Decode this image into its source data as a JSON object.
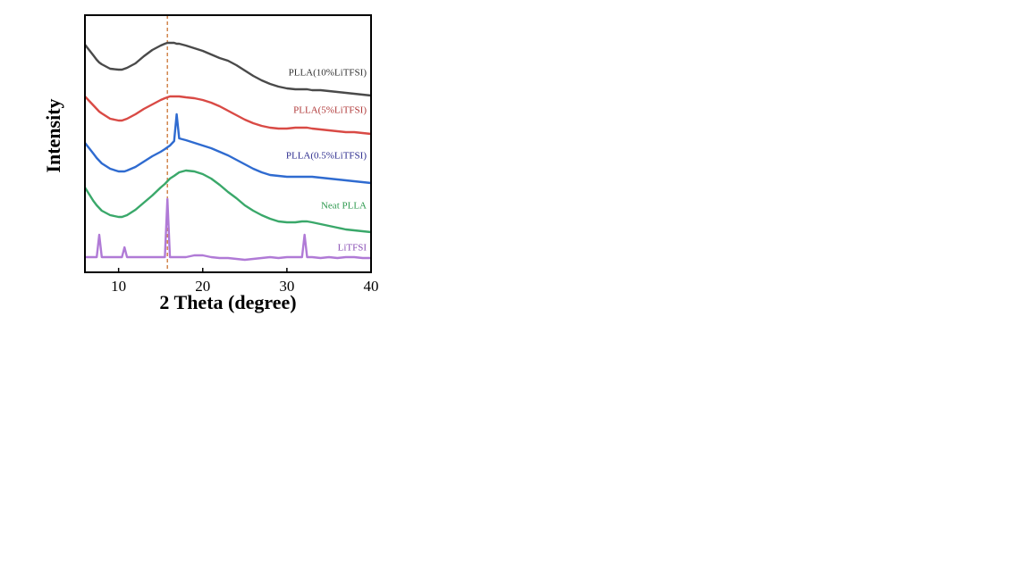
{
  "chart_data": {
    "type": "line",
    "x_label": "2 Theta (degree)",
    "y_label": "Intensity",
    "xlim": [
      6,
      40
    ],
    "ylim": [
      0,
      288
    ],
    "xticks": [
      10,
      20,
      30,
      40
    ],
    "vline": {
      "x": 15.8,
      "color": "#d2874e"
    },
    "x": [
      6,
      7,
      7.4,
      7.7,
      8,
      9,
      10,
      10.4,
      10.7,
      11,
      12,
      13,
      14,
      15,
      15.5,
      15.8,
      16.1,
      16.6,
      16.9,
      17.2,
      18,
      19,
      20,
      21,
      22,
      23,
      24,
      25,
      26,
      27,
      28,
      29,
      30,
      31,
      31.8,
      32.1,
      32.4,
      33,
      34,
      35,
      36,
      37,
      38,
      39,
      40
    ],
    "series": [
      {
        "name": "PLLA(10%LiTFSI)",
        "color": "#4a4a4a",
        "label_color": "#333333",
        "values": [
          255,
          243,
          238,
          235,
          233,
          228,
          227,
          227,
          228,
          229,
          234,
          242,
          249,
          254,
          256,
          257,
          257,
          257,
          256,
          256,
          254,
          251,
          248,
          244,
          240,
          237,
          232,
          226,
          220,
          215,
          211,
          208,
          206,
          205,
          205,
          205,
          205,
          204,
          204,
          203,
          202,
          201,
          200,
          199,
          198
        ]
      },
      {
        "name": "PLLA(5%LiTFSI)",
        "color": "#d94a45",
        "label_color": "#b03a3a",
        "values": [
          197,
          187,
          183,
          180,
          178,
          172,
          170,
          170,
          171,
          172,
          177,
          183,
          188,
          193,
          195,
          196,
          197,
          197,
          197,
          197,
          196,
          195,
          193,
          190,
          186,
          181,
          176,
          171,
          167,
          164,
          162,
          161,
          161,
          162,
          162,
          162,
          162,
          161,
          160,
          159,
          158,
          157,
          157,
          156,
          155
        ]
      },
      {
        "name": "PLLA(0.5%LiTFSI)",
        "color": "#2f6bd0",
        "label_color": "#2e2e8f",
        "values": [
          145,
          133,
          128,
          125,
          122,
          116,
          113,
          113,
          113,
          114,
          118,
          124,
          130,
          135,
          138,
          140,
          142,
          147,
          177,
          150,
          148,
          145,
          142,
          139,
          135,
          131,
          126,
          121,
          116,
          112,
          109,
          108,
          107,
          107,
          107,
          107,
          107,
          107,
          106,
          105,
          104,
          103,
          102,
          101,
          100
        ]
      },
      {
        "name": "Neat PLLA",
        "color": "#3aa86a",
        "label_color": "#2f9a50",
        "values": [
          95,
          80,
          75,
          72,
          69,
          64,
          62,
          62,
          63,
          64,
          70,
          78,
          86,
          95,
          99,
          102,
          105,
          108,
          110,
          112,
          114,
          113,
          110,
          105,
          98,
          90,
          83,
          75,
          69,
          64,
          60,
          57,
          56,
          56,
          57,
          57,
          57,
          56,
          54,
          52,
          50,
          48,
          47,
          46,
          45
        ]
      },
      {
        "name": "LiTFSI",
        "color": "#b07ad6",
        "label_color": "#8a4fb5",
        "values": [
          17,
          17,
          17,
          42,
          17,
          17,
          17,
          17,
          28,
          17,
          17,
          17,
          17,
          17,
          17,
          82,
          17,
          17,
          17,
          17,
          17,
          19,
          19,
          17,
          16,
          16,
          15,
          14,
          15,
          16,
          17,
          16,
          17,
          17,
          17,
          42,
          17,
          17,
          16,
          17,
          16,
          17,
          17,
          16,
          16
        ]
      }
    ]
  }
}
